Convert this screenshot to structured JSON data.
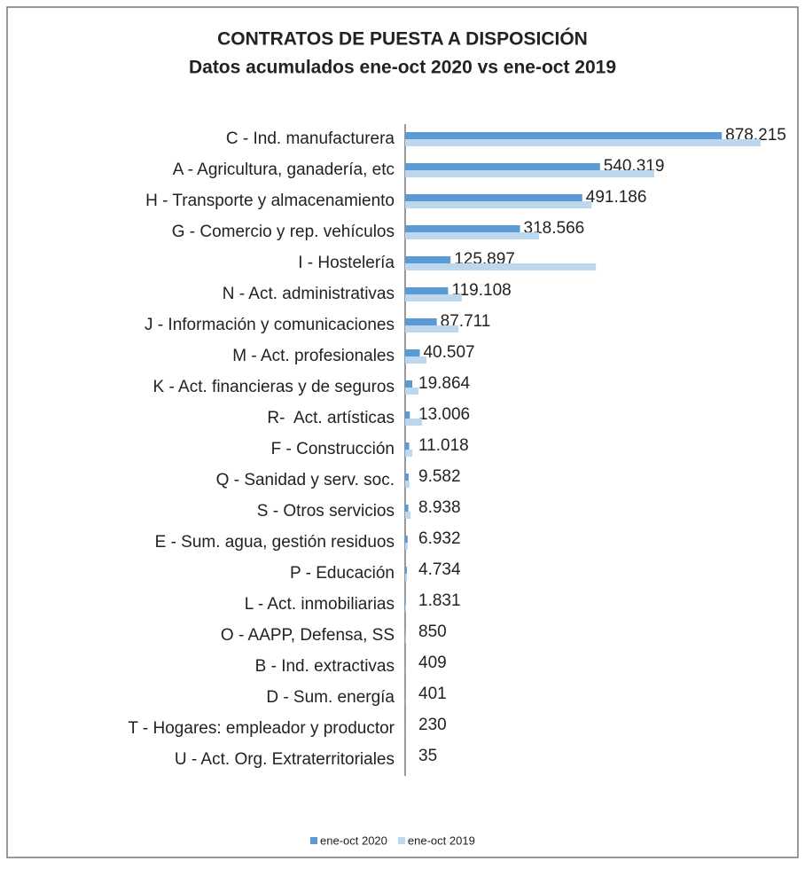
{
  "chart_data": {
    "type": "bar",
    "orientation": "horizontal",
    "title": "CONTRATOS DE PUESTA A DISPOSICIÓN",
    "subtitle": "Datos acumulados ene-oct 2020 vs ene-oct 2019",
    "categories": [
      "C - Ind. manufacturera",
      "A - Agricultura, ganadería, etc",
      "H - Transporte y almacenamiento",
      "G - Comercio y rep. vehículos",
      "I - Hostelería",
      "N - Act. administrativas",
      "J - Información y comunicaciones",
      "M - Act. profesionales",
      "K - Act. financieras y de seguros",
      "R-  Act. artísticas",
      "F - Construcción",
      "Q - Sanidad y serv. soc.",
      "S - Otros servicios",
      "E - Sum. agua, gestión residuos",
      "P - Educación",
      "L - Act. inmobiliarias",
      "O - AAPP, Defensa, SS",
      "B - Ind. extractivas",
      "D - Sum. energía",
      "T - Hogares: empleador y productor",
      "U - Act. Org. Extraterritoriales"
    ],
    "series": [
      {
        "name": "ene-oct 2020",
        "color": "#5b9bd5",
        "values": [
          878215,
          540319,
          491186,
          318566,
          125897,
          119108,
          87711,
          40507,
          19864,
          13006,
          11018,
          9582,
          8938,
          6932,
          4734,
          1831,
          850,
          409,
          401,
          230,
          35
        ],
        "value_labels": [
          "878.215",
          "540.319",
          "491.186",
          "318.566",
          "125.897",
          "119.108",
          "87.711",
          "40.507",
          "19.864",
          "13.006",
          "11.018",
          "9.582",
          "8.938",
          "6.932",
          "4.734",
          "1.831",
          "850",
          "409",
          "401",
          "230",
          "35"
        ]
      },
      {
        "name": "ene-oct 2019",
        "color": "#bdd7ee",
        "values": [
          986000,
          691000,
          517000,
          371000,
          529000,
          157000,
          148000,
          59000,
          37000,
          47000,
          20000,
          12000,
          15000,
          7000,
          5000,
          2000,
          1000,
          500,
          500,
          300,
          50
        ]
      }
    ]
  }
}
